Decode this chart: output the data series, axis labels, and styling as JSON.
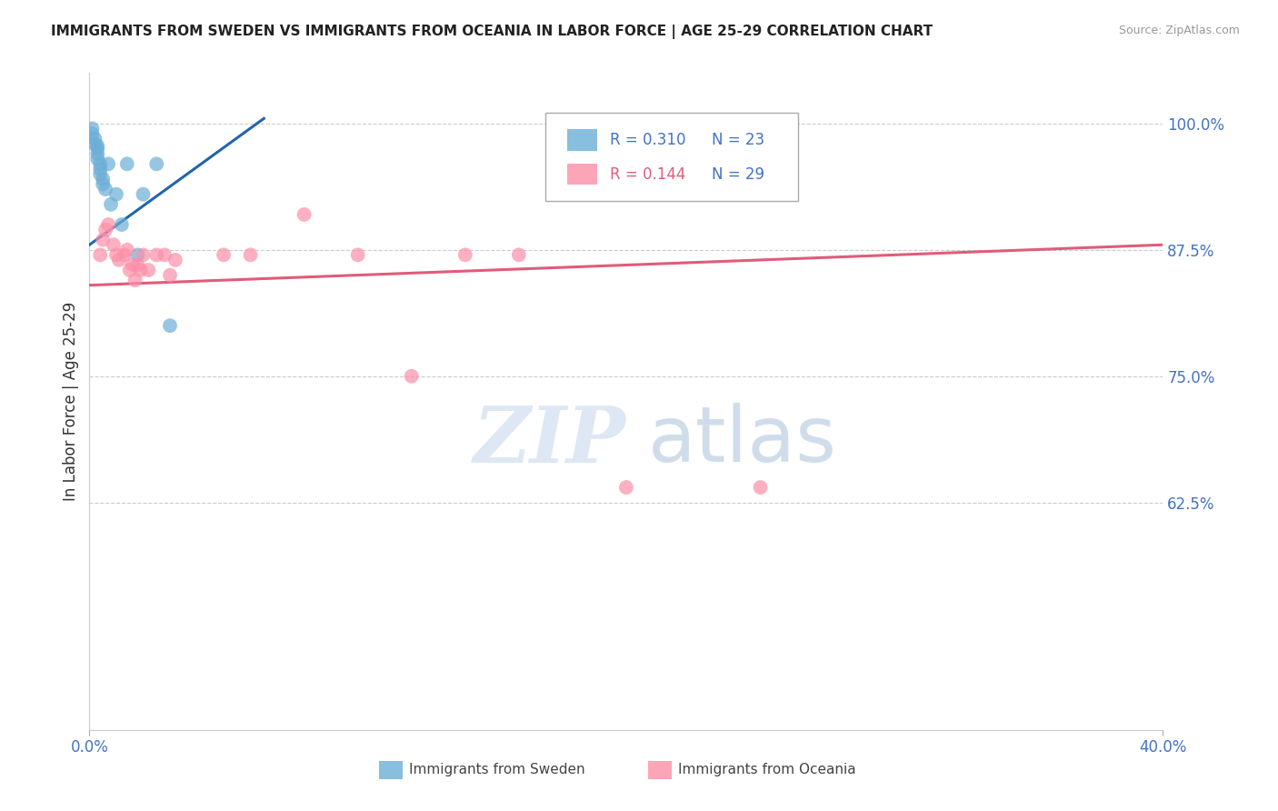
{
  "title": "IMMIGRANTS FROM SWEDEN VS IMMIGRANTS FROM OCEANIA IN LABOR FORCE | AGE 25-29 CORRELATION CHART",
  "source": "Source: ZipAtlas.com",
  "ylabel": "In Labor Force | Age 25-29",
  "xmin": 0.0,
  "xmax": 0.4,
  "ymin": 0.4,
  "ymax": 1.05,
  "yticks": [
    0.625,
    0.75,
    0.875,
    1.0
  ],
  "ytick_labels": [
    "62.5%",
    "75.0%",
    "87.5%",
    "100.0%"
  ],
  "legend_r_sweden": "R = 0.310",
  "legend_n_sweden": "N = 23",
  "legend_r_oceania": "R = 0.144",
  "legend_n_oceania": "N = 29",
  "sweden_color": "#6baed6",
  "oceania_color": "#fc8fa8",
  "sweden_line_color": "#2166ac",
  "oceania_line_color": "#e05c7a",
  "sweden_x": [
    0.001,
    0.001,
    0.002,
    0.002,
    0.003,
    0.003,
    0.003,
    0.003,
    0.004,
    0.004,
    0.004,
    0.005,
    0.005,
    0.006,
    0.007,
    0.008,
    0.01,
    0.012,
    0.014,
    0.018,
    0.02,
    0.025,
    0.03
  ],
  "sweden_y": [
    0.995,
    0.99,
    0.985,
    0.98,
    0.978,
    0.975,
    0.97,
    0.965,
    0.96,
    0.955,
    0.95,
    0.945,
    0.94,
    0.935,
    0.96,
    0.92,
    0.93,
    0.9,
    0.96,
    0.87,
    0.93,
    0.96,
    0.8
  ],
  "oceania_x": [
    0.004,
    0.005,
    0.006,
    0.007,
    0.009,
    0.01,
    0.011,
    0.013,
    0.014,
    0.015,
    0.016,
    0.017,
    0.018,
    0.019,
    0.02,
    0.022,
    0.025,
    0.028,
    0.03,
    0.032,
    0.05,
    0.06,
    0.08,
    0.1,
    0.12,
    0.14,
    0.16,
    0.2,
    0.25
  ],
  "oceania_y": [
    0.87,
    0.885,
    0.895,
    0.9,
    0.88,
    0.87,
    0.865,
    0.87,
    0.875,
    0.855,
    0.86,
    0.845,
    0.86,
    0.855,
    0.87,
    0.855,
    0.87,
    0.87,
    0.85,
    0.865,
    0.87,
    0.87,
    0.91,
    0.87,
    0.75,
    0.87,
    0.87,
    0.64,
    0.64
  ],
  "watermark_zip": "ZIP",
  "watermark_atlas": "atlas",
  "background_color": "#ffffff",
  "grid_color": "#cccccc",
  "sweden_trendline_x": [
    0.0,
    0.065
  ],
  "sweden_trendline_y": [
    0.88,
    1.005
  ],
  "oceania_trendline_x": [
    0.0,
    0.4
  ],
  "oceania_trendline_y": [
    0.84,
    0.88
  ]
}
